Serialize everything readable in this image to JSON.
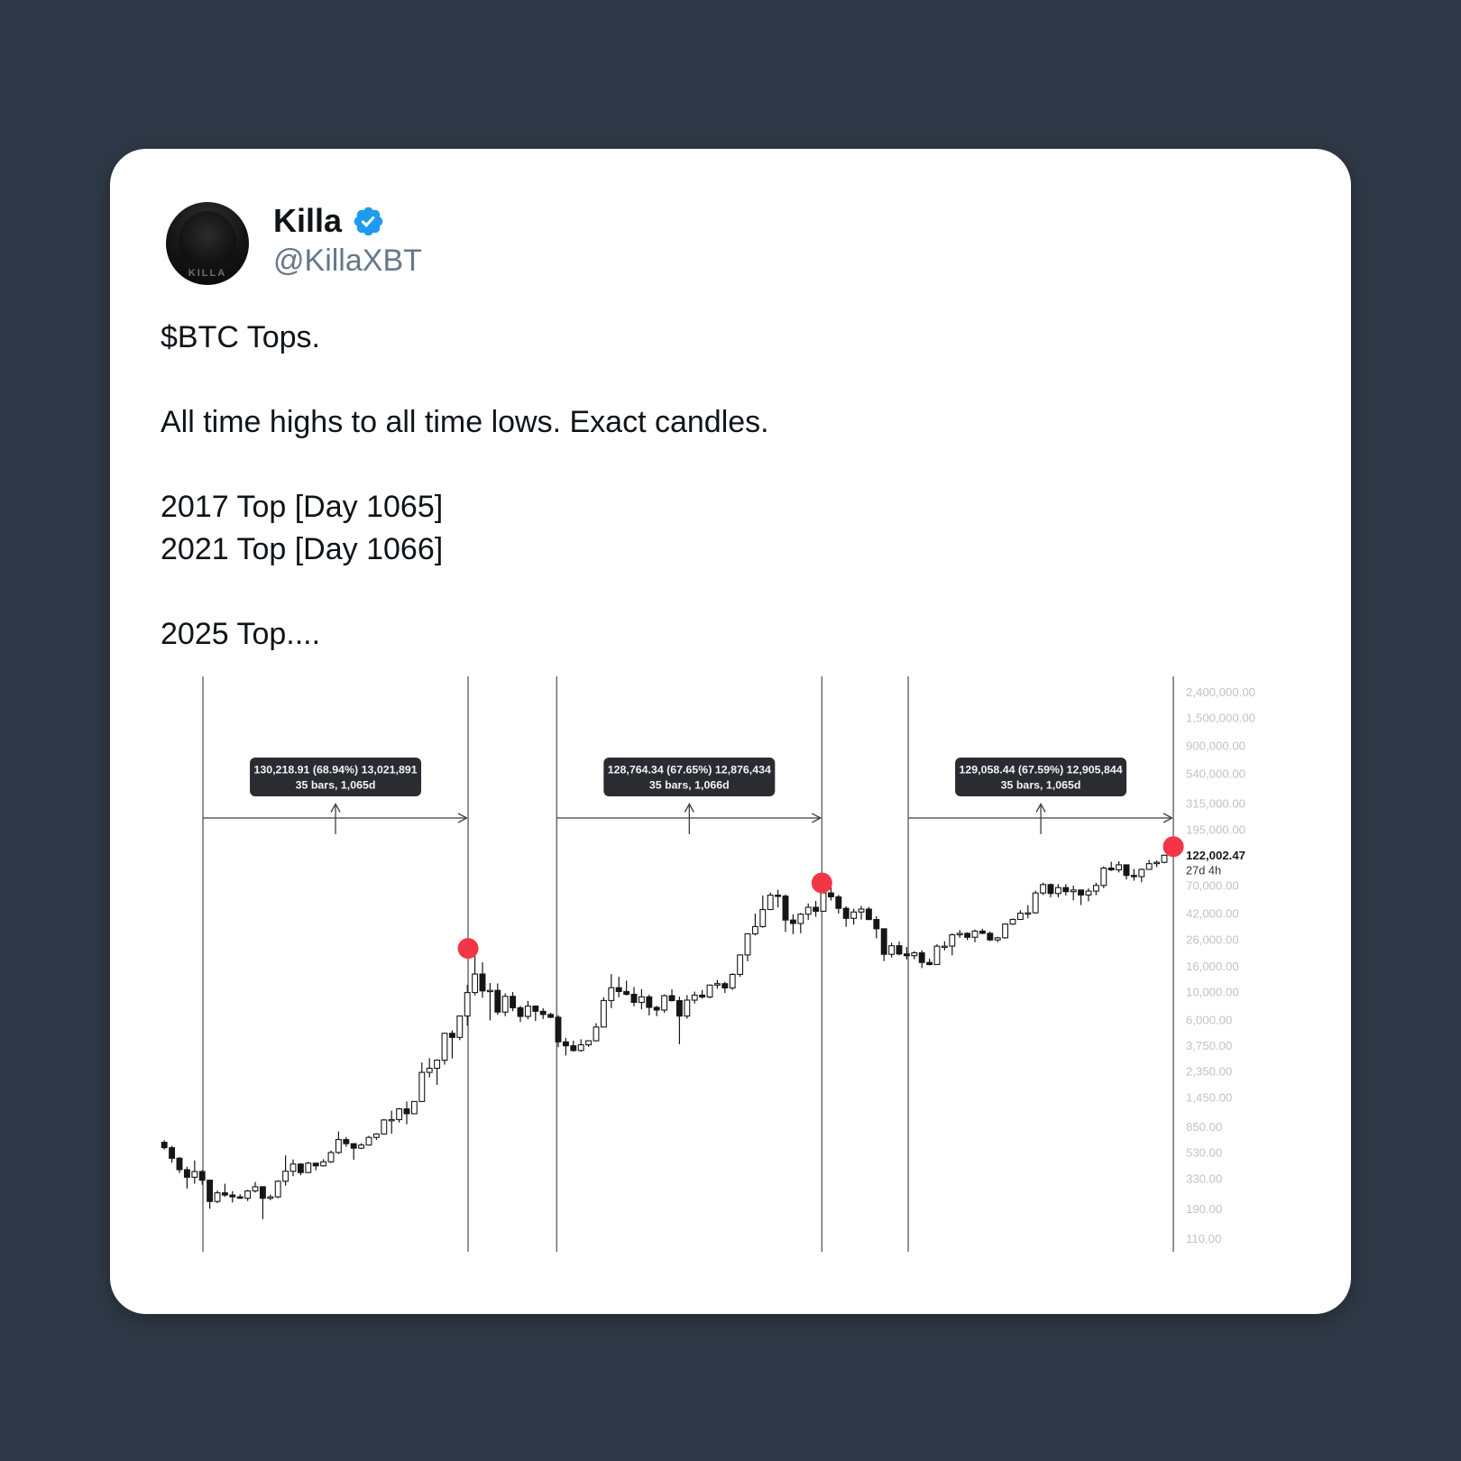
{
  "page": {
    "background": "#2f3846",
    "card_background": "#ffffff"
  },
  "tweet": {
    "display_name": "Killa",
    "verified": true,
    "handle": "@KillaXBT",
    "avatar_text": "KILLA",
    "lines": [
      "$BTC Tops.",
      "",
      "All time highs to all time lows. Exact candles.",
      "",
      "2017 Top [Day 1065]",
      "2021 Top [Day 1066]",
      "",
      "2025 Top...."
    ],
    "accent_color": "#1d9bf0",
    "name_color": "#0f1419",
    "handle_color": "#68778a"
  },
  "chart_data": {
    "type": "candlestick",
    "symbol": "BTC",
    "bar_interval": "monthly",
    "scale": "log",
    "start_month": "2014-07",
    "grid": false,
    "x_axis_labels": [],
    "candles": [
      [
        640,
        665,
        560,
        580
      ],
      [
        580,
        600,
        440,
        478
      ],
      [
        478,
        490,
        365,
        388
      ],
      [
        388,
        410,
        275,
        338
      ],
      [
        338,
        460,
        300,
        375
      ],
      [
        375,
        385,
        295,
        320
      ],
      [
        320,
        322,
        190,
        217
      ],
      [
        217,
        265,
        210,
        254
      ],
      [
        254,
        300,
        236,
        244
      ],
      [
        244,
        262,
        213,
        236
      ],
      [
        236,
        248,
        228,
        230
      ],
      [
        230,
        268,
        219,
        263
      ],
      [
        263,
        310,
        255,
        284
      ],
      [
        284,
        285,
        157,
        230
      ],
      [
        230,
        246,
        222,
        236
      ],
      [
        236,
        320,
        230,
        314
      ],
      [
        314,
        504,
        290,
        377
      ],
      [
        377,
        468,
        345,
        430
      ],
      [
        430,
        437,
        350,
        368
      ],
      [
        368,
        448,
        365,
        437
      ],
      [
        437,
        440,
        383,
        416
      ],
      [
        416,
        470,
        410,
        448
      ],
      [
        448,
        550,
        438,
        531
      ],
      [
        531,
        780,
        518,
        673
      ],
      [
        673,
        706,
        590,
        624
      ],
      [
        624,
        630,
        465,
        575
      ],
      [
        575,
        630,
        565,
        609
      ],
      [
        609,
        720,
        600,
        700
      ],
      [
        700,
        755,
        670,
        745
      ],
      [
        745,
        982,
        740,
        963
      ],
      [
        963,
        1140,
        750,
        970
      ],
      [
        970,
        1200,
        920,
        1180
      ],
      [
        1180,
        1350,
        890,
        1080
      ],
      [
        1080,
        1350,
        1075,
        1350
      ],
      [
        1350,
        2760,
        1340,
        2300
      ],
      [
        2300,
        2980,
        2100,
        2480
      ],
      [
        2480,
        2920,
        1830,
        2875
      ],
      [
        2875,
        4750,
        2650,
        4700
      ],
      [
        4700,
        4950,
        2970,
        4360
      ],
      [
        4360,
        6480,
        4150,
        6450
      ],
      [
        6450,
        11400,
        5400,
        9900
      ],
      [
        9900,
        19891,
        9400,
        13900
      ],
      [
        13900,
        17200,
        9000,
        10200
      ],
      [
        10200,
        11790,
        5950,
        10300
      ],
      [
        10300,
        11700,
        6600,
        6930
      ],
      [
        6930,
        9760,
        6430,
        9240
      ],
      [
        9240,
        9990,
        7040,
        7500
      ],
      [
        7500,
        7750,
        5780,
        6400
      ],
      [
        6400,
        8500,
        6070,
        7730
      ],
      [
        7730,
        7760,
        5880,
        7030
      ],
      [
        7030,
        7430,
        6100,
        6630
      ],
      [
        6630,
        6850,
        6200,
        6300
      ],
      [
        6300,
        6540,
        3650,
        4020
      ],
      [
        4020,
        4310,
        3130,
        3740
      ],
      [
        3740,
        4110,
        3350,
        3430
      ],
      [
        3430,
        4220,
        3350,
        3810
      ],
      [
        3810,
        4140,
        3670,
        4100
      ],
      [
        4100,
        5650,
        4050,
        5270
      ],
      [
        5270,
        9100,
        5230,
        8560
      ],
      [
        8560,
        13880,
        7450,
        10820
      ],
      [
        10820,
        13200,
        9080,
        10090
      ],
      [
        10090,
        12320,
        9360,
        9590
      ],
      [
        9590,
        10950,
        7700,
        8280
      ],
      [
        8280,
        10540,
        7290,
        9150
      ],
      [
        9150,
        9520,
        6520,
        7550
      ],
      [
        7550,
        7760,
        6430,
        7190
      ],
      [
        7190,
        9570,
        6850,
        9350
      ],
      [
        9350,
        10500,
        8400,
        8550
      ],
      [
        8550,
        9190,
        3850,
        6440
      ],
      [
        6440,
        9460,
        6150,
        8620
      ],
      [
        8620,
        10070,
        8100,
        9450
      ],
      [
        9450,
        10380,
        8830,
        9140
      ],
      [
        9140,
        11450,
        8900,
        11350
      ],
      [
        11350,
        12480,
        10630,
        11650
      ],
      [
        11650,
        12050,
        9820,
        10780
      ],
      [
        10780,
        14100,
        10400,
        13800
      ],
      [
        13800,
        19860,
        13200,
        19700
      ],
      [
        19700,
        29300,
        17570,
        29000
      ],
      [
        29000,
        41950,
        28130,
        33100
      ],
      [
        33100,
        58350,
        32350,
        45200
      ],
      [
        45200,
        61800,
        44950,
        58800
      ],
      [
        58800,
        64870,
        46930,
        57750
      ],
      [
        57750,
        59500,
        30000,
        37300
      ],
      [
        37300,
        41330,
        28800,
        35000
      ],
      [
        35000,
        42450,
        29300,
        41500
      ],
      [
        41500,
        50500,
        37330,
        47100
      ],
      [
        47100,
        52920,
        39600,
        43800
      ],
      [
        43800,
        67000,
        43290,
        61300
      ],
      [
        61300,
        69000,
        53250,
        57000
      ],
      [
        57000,
        59100,
        42000,
        46200
      ],
      [
        46200,
        47990,
        32950,
        38480
      ],
      [
        38480,
        45820,
        34320,
        43190
      ],
      [
        43190,
        48240,
        37580,
        45540
      ],
      [
        45540,
        47450,
        37600,
        37650
      ],
      [
        37650,
        40020,
        26700,
        31790
      ],
      [
        31790,
        31970,
        17600,
        19925
      ],
      [
        19925,
        24670,
        18780,
        23300
      ],
      [
        23300,
        25200,
        19520,
        20050
      ],
      [
        20050,
        22800,
        18130,
        19430
      ],
      [
        19430,
        21080,
        18190,
        20490
      ],
      [
        20490,
        21480,
        15480,
        17160
      ],
      [
        17160,
        18390,
        16260,
        16540
      ],
      [
        16540,
        23960,
        16490,
        23130
      ],
      [
        23130,
        25250,
        21400,
        23140
      ],
      [
        23140,
        29180,
        19550,
        28470
      ],
      [
        28470,
        31050,
        26940,
        29230
      ],
      [
        29230,
        29850,
        25810,
        27220
      ],
      [
        27220,
        31400,
        24800,
        30470
      ],
      [
        30470,
        31800,
        28860,
        29230
      ],
      [
        29230,
        30180,
        25350,
        25930
      ],
      [
        25930,
        27480,
        24900,
        26960
      ],
      [
        26960,
        35150,
        26540,
        34650
      ],
      [
        34650,
        38415,
        34100,
        37710
      ],
      [
        37710,
        44700,
        37615,
        42280
      ],
      [
        42280,
        48970,
        38500,
        42580
      ],
      [
        42580,
        63930,
        41880,
        61180
      ],
      [
        61180,
        73790,
        59005,
        71330
      ],
      [
        71330,
        72800,
        56500,
        60640
      ],
      [
        60640,
        71950,
        56555,
        67520
      ],
      [
        67520,
        71997,
        58400,
        62680
      ],
      [
        62680,
        70000,
        53485,
        64620
      ],
      [
        64620,
        65100,
        49050,
        58970
      ],
      [
        58970,
        66500,
        52550,
        63330
      ],
      [
        63330,
        73620,
        58900,
        70220
      ],
      [
        70220,
        99800,
        66835,
        96450
      ],
      [
        96450,
        108300,
        91530,
        93430
      ],
      [
        93430,
        109360,
        89160,
        102400
      ],
      [
        102400,
        102800,
        78260,
        84350
      ],
      [
        84350,
        95000,
        76600,
        82550
      ],
      [
        82550,
        95770,
        74430,
        94180
      ],
      [
        94180,
        111980,
        93360,
        104600
      ],
      [
        104600,
        110530,
        98240,
        107140
      ],
      [
        107140,
        123240,
        105100,
        122002
      ]
    ],
    "measures": [
      {
        "line1": "130,218.91 (68.94%) 13,021,891",
        "line2": "35 bars, 1,065d",
        "i1": 5.6,
        "i2": 40.6
      },
      {
        "line1": "128,764.34 (67.65%) 12,876,434",
        "line2": "35 bars, 1,066d",
        "i1": 52.3,
        "i2": 87.3
      },
      {
        "line1": "129,058.44 (67.59%) 12,905,844",
        "line2": "35 bars, 1,065d",
        "i1": 98.7,
        "i2": 133.7
      }
    ],
    "dots": [
      {
        "i": 40.6,
        "price": 22200
      },
      {
        "i": 87.3,
        "price": 73500
      },
      {
        "i": 133.7,
        "price": 143000
      }
    ],
    "y_axis": {
      "side": "right",
      "ticks": [
        {
          "label": "2,400,000.00",
          "price": 2400000
        },
        {
          "label": "1,500,000.00",
          "price": 1500000
        },
        {
          "label": "900,000.00",
          "price": 900000
        },
        {
          "label": "540,000.00",
          "price": 540000
        },
        {
          "label": "315,000.00",
          "price": 315000
        },
        {
          "label": "195,000.00",
          "price": 195000
        },
        {
          "label": "70,000.00",
          "price": 70000
        },
        {
          "label": "42,000.00",
          "price": 42000
        },
        {
          "label": "26,000.00",
          "price": 26000
        },
        {
          "label": "16,000.00",
          "price": 16000
        },
        {
          "label": "10,000.00",
          "price": 10000
        },
        {
          "label": "6,000.00",
          "price": 6000
        },
        {
          "label": "3,750.00",
          "price": 3750
        },
        {
          "label": "2,350.00",
          "price": 2350
        },
        {
          "label": "1,450.00",
          "price": 1450
        },
        {
          "label": "850.00",
          "price": 850
        },
        {
          "label": "530.00",
          "price": 530
        },
        {
          "label": "330.00",
          "price": 330
        },
        {
          "label": "190.00",
          "price": 190
        },
        {
          "label": "110.00",
          "price": 110
        }
      ],
      "current": {
        "label": "122,002.47",
        "sub": "27d 4h",
        "price": 122002.47
      }
    },
    "colors": {
      "up": "#ffffff",
      "down": "#161616",
      "wick": "#161616",
      "dot": "#f23645",
      "tooltip_bg": "#2b2c31",
      "tooltip_text": "#f2f3f5",
      "measure_line": "#3f3f3f",
      "vertical_line": "#6e6e6e",
      "axis_text": "#c0c2c6",
      "current_text": "#16181c"
    }
  }
}
